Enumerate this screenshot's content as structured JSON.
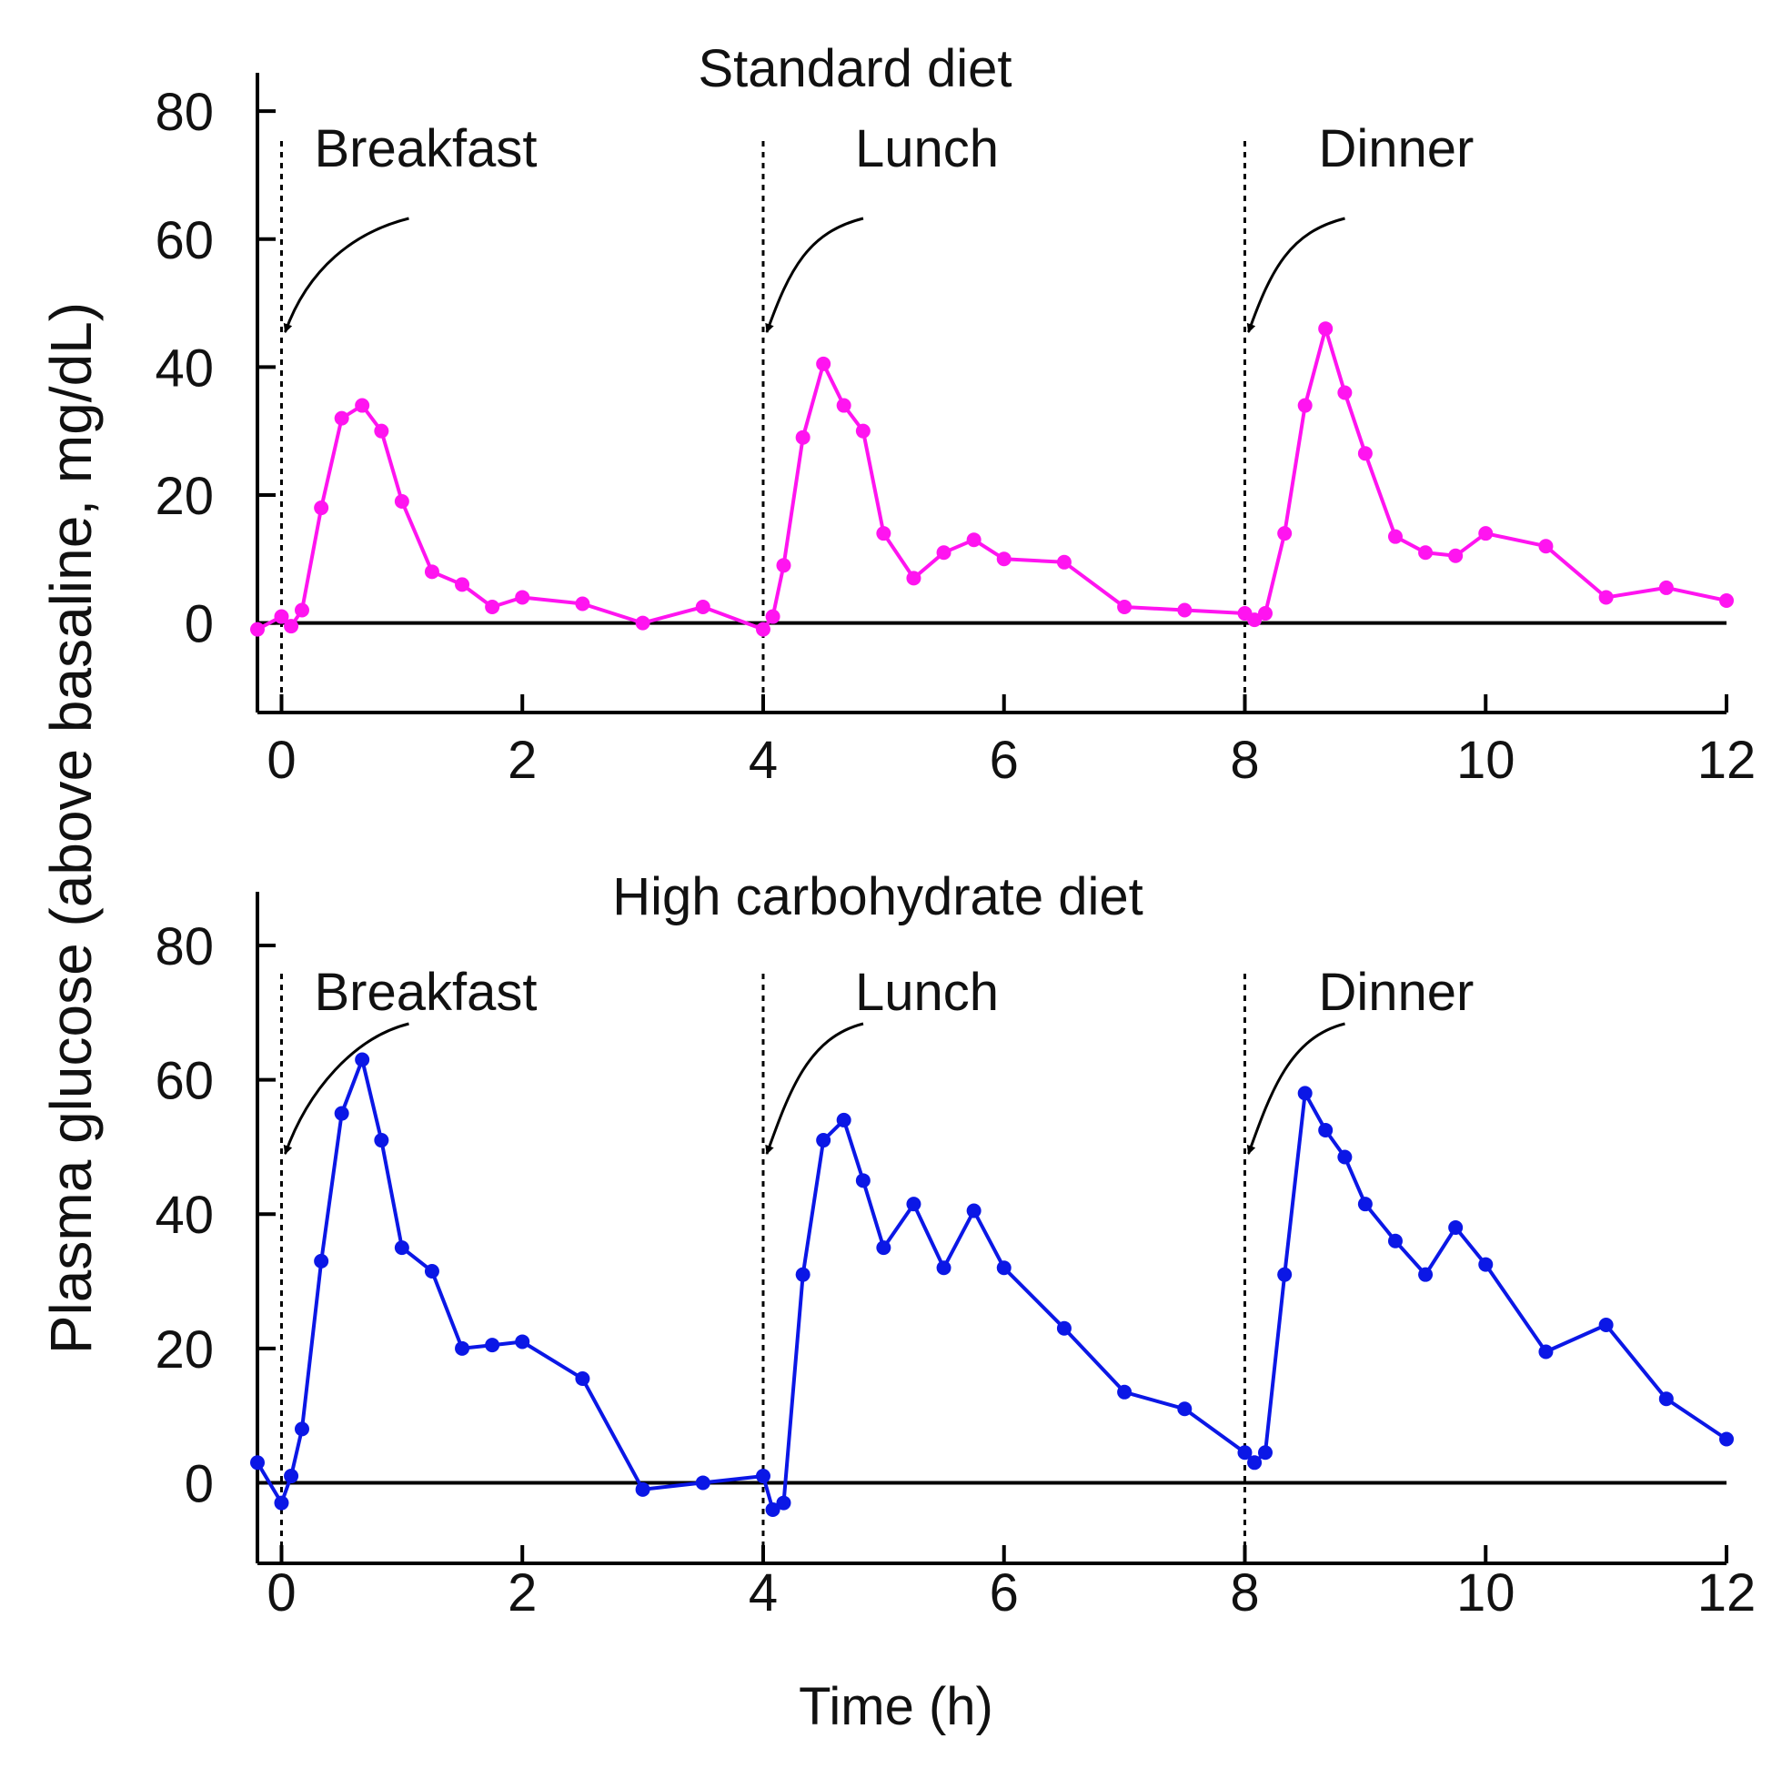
{
  "chart_data": [
    {
      "type": "line",
      "title": "Standard diet",
      "color": "#ff14f0",
      "xlabel": "Time (h)",
      "ylabel": "Plasma glucose (above basaline, mg/dL)",
      "xlim": [
        -0.2,
        12
      ],
      "ylim": [
        -14,
        86
      ],
      "x_ticks": [
        0,
        2,
        4,
        6,
        8,
        10,
        12
      ],
      "x_tick_labels": [
        "0",
        "2",
        "4",
        "6",
        "8",
        "10",
        "12"
      ],
      "y_ticks": [
        0,
        20,
        40,
        60,
        80
      ],
      "y_tick_labels": [
        "0",
        "20",
        "40",
        "60",
        "80"
      ],
      "meals": [
        {
          "label": "Breakfast",
          "time": 0
        },
        {
          "label": "Lunch",
          "time": 4
        },
        {
          "label": "Dinner",
          "time": 8
        }
      ],
      "series": [
        {
          "name": "Standard diet",
          "x": [
            -0.2,
            0,
            0.08,
            0.17,
            0.33,
            0.5,
            0.67,
            0.83,
            1,
            1.25,
            1.5,
            1.75,
            2,
            2.5,
            3,
            3.5,
            4,
            4.08,
            4.17,
            4.33,
            4.5,
            4.67,
            4.83,
            5,
            5.25,
            5.5,
            5.75,
            6,
            6.5,
            7,
            7.5,
            8,
            8.08,
            8.17,
            8.33,
            8.5,
            8.67,
            8.83,
            9,
            9.25,
            9.5,
            9.75,
            10,
            10.5,
            11,
            11.5,
            12
          ],
          "values": [
            -1,
            1,
            -0.5,
            2,
            18,
            32,
            34,
            30,
            19,
            8,
            6,
            2.5,
            4,
            3,
            0,
            2.5,
            -1,
            1,
            9,
            29,
            40.5,
            34,
            30,
            14,
            7,
            11,
            13,
            10,
            9.5,
            2.5,
            2,
            1.5,
            0.5,
            1.5,
            14,
            34,
            46,
            36,
            26.5,
            13.5,
            11,
            10.5,
            14,
            12,
            4,
            5.5,
            3.5
          ]
        }
      ]
    },
    {
      "type": "line",
      "title": "High carbohydrate diet",
      "color": "#0b17e6",
      "xlabel": "Time (h)",
      "ylabel": "Plasma glucose (above basaline, mg/dL)",
      "xlim": [
        -0.2,
        12
      ],
      "ylim": [
        -12,
        88
      ],
      "x_ticks": [
        0,
        2,
        4,
        6,
        8,
        10,
        12
      ],
      "x_tick_labels": [
        "0",
        "2",
        "4",
        "6",
        "8",
        "10",
        "12"
      ],
      "y_ticks": [
        0,
        20,
        40,
        60,
        80
      ],
      "y_tick_labels": [
        "0",
        "20",
        "40",
        "60",
        "80"
      ],
      "meals": [
        {
          "label": "Breakfast",
          "time": 0
        },
        {
          "label": "Lunch",
          "time": 4
        },
        {
          "label": "Dinner",
          "time": 8
        }
      ],
      "series": [
        {
          "name": "High carbohydrate diet",
          "x": [
            -0.2,
            0,
            0.08,
            0.17,
            0.33,
            0.5,
            0.67,
            0.83,
            1,
            1.25,
            1.5,
            1.75,
            2,
            2.5,
            3,
            3.5,
            4,
            4.08,
            4.17,
            4.33,
            4.5,
            4.67,
            4.83,
            5,
            5.25,
            5.5,
            5.75,
            6,
            6.5,
            7,
            7.5,
            8,
            8.08,
            8.17,
            8.33,
            8.5,
            8.67,
            8.83,
            9,
            9.25,
            9.5,
            9.75,
            10,
            10.5,
            11,
            11.5,
            12
          ],
          "values": [
            3,
            -3,
            1,
            8,
            33,
            55,
            63,
            51,
            35,
            31.5,
            20,
            20.5,
            21,
            15.5,
            -1,
            0,
            1,
            -4,
            -3,
            31,
            51,
            54,
            45,
            35,
            41.5,
            32,
            40.5,
            32,
            23,
            13.5,
            11,
            4.5,
            3,
            4.5,
            31,
            58,
            52.5,
            48.5,
            41.5,
            36,
            31,
            38,
            32.5,
            19.5,
            23.5,
            12.5,
            6.5
          ]
        }
      ]
    }
  ]
}
